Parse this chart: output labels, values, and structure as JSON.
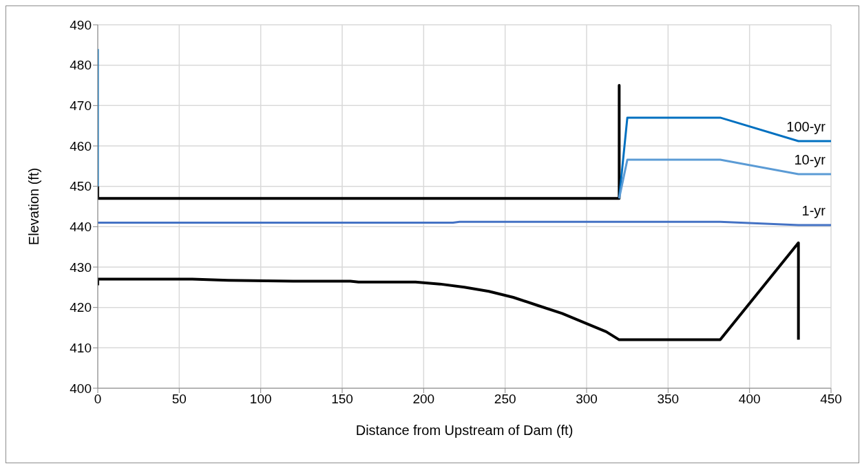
{
  "chart_data": {
    "type": "line",
    "xlabel": "Distance from Upstream of Dam (ft)",
    "ylabel": "Elevation (ft)",
    "xlim": [
      0,
      450
    ],
    "ylim": [
      400,
      490
    ],
    "xticks": [
      0,
      50,
      100,
      150,
      200,
      250,
      300,
      350,
      400,
      450
    ],
    "yticks": [
      400,
      410,
      420,
      430,
      440,
      450,
      460,
      470,
      480,
      490
    ],
    "grid": true,
    "marker": "none",
    "line_style": "solid",
    "series": [
      {
        "color": "#000000",
        "x": [
          0,
          0,
          320,
          320,
          320
        ],
        "values": [
          450,
          447,
          447,
          475,
          447
        ]
      },
      {
        "color": "#000000",
        "x": [
          0,
          0,
          58,
          80,
          120,
          155,
          160,
          195,
          210,
          225,
          240,
          255,
          270,
          285,
          300,
          312,
          320,
          382,
          430,
          430
        ],
        "values": [
          425.5,
          427,
          427,
          426.7,
          426.5,
          426.5,
          426.3,
          426.3,
          425.8,
          425,
          424,
          422.5,
          420.5,
          418.5,
          416,
          414,
          412,
          412,
          436,
          412
        ]
      },
      {
        "color": "#0070c0",
        "x": [
          0,
          0
        ],
        "values": [
          484,
          450
        ]
      },
      {
        "name": "100-yr",
        "color": "#0070c0",
        "x": [
          320,
          325,
          382,
          430,
          450
        ],
        "values": [
          447,
          467,
          467,
          461.2,
          461.2
        ]
      },
      {
        "name": "10-yr",
        "color": "#5b9bd5",
        "x": [
          320,
          325,
          382,
          430,
          450
        ],
        "values": [
          447,
          456.6,
          456.6,
          453,
          453
        ]
      },
      {
        "name": "1-yr",
        "color": "#4472c4",
        "x": [
          0,
          218,
          222,
          382,
          430,
          450
        ],
        "values": [
          441,
          441,
          441.2,
          441.2,
          440.4,
          440.4
        ]
      }
    ]
  }
}
